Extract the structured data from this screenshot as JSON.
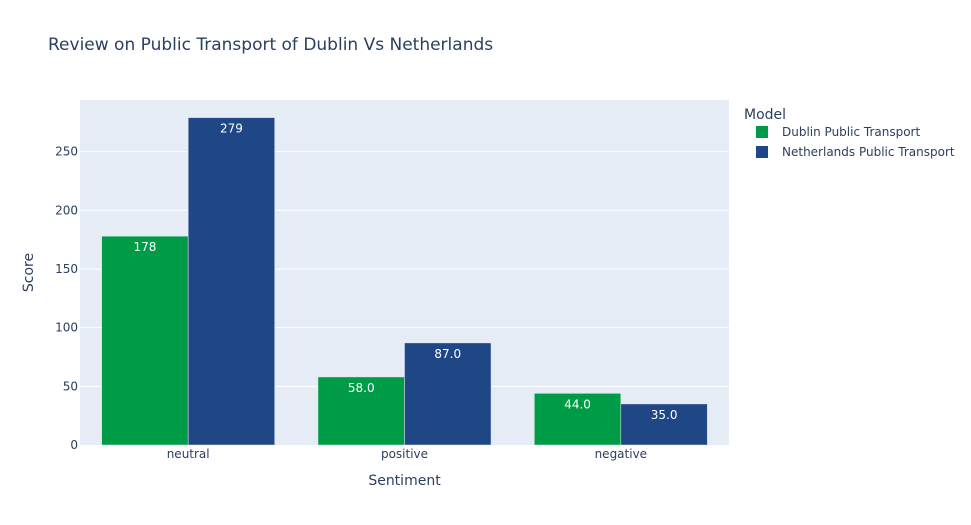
{
  "chart_data": {
    "type": "bar",
    "title": "Review on Public Transport of Dublin Vs Netherlands",
    "xlabel": "Sentiment",
    "ylabel": "Score",
    "categories": [
      "neutral",
      "positive",
      "negative"
    ],
    "ylim": [
      0,
      294
    ],
    "yticks": [
      0,
      50,
      100,
      150,
      200,
      250
    ],
    "grid": true,
    "legend": {
      "title": "Model",
      "placement": "right"
    },
    "series": [
      {
        "name": "Dublin Public Transport",
        "color": "#009B47",
        "values": [
          178,
          58,
          44
        ],
        "labels": [
          "178",
          "58.0",
          "44.0"
        ]
      },
      {
        "name": "Netherlands Public Transport",
        "color": "#1F4786",
        "values": [
          279,
          87,
          35
        ],
        "labels": [
          "279",
          "87.0",
          "35.0"
        ]
      }
    ]
  }
}
